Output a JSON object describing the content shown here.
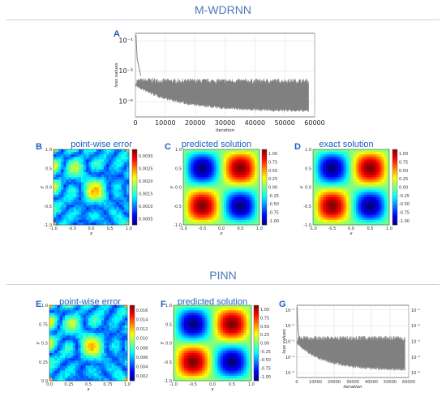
{
  "sections": {
    "top_title": "M-WDRNN",
    "bottom_title": "PINN"
  },
  "panels": [
    {
      "letter": "A",
      "title": ""
    },
    {
      "letter": "B",
      "title": "point-wise error"
    },
    {
      "letter": "C",
      "title": "predicted solution"
    },
    {
      "letter": "D",
      "title": "exact solution"
    },
    {
      "letter": "E",
      "title": "point-wise error"
    },
    {
      "letter": "F",
      "title": "predicted solution"
    },
    {
      "letter": "G",
      "title": ""
    }
  ],
  "colors": {
    "accent": "#1f5fbf",
    "section": "#4a7ab8",
    "loss": "#808080"
  },
  "chart_data": [
    {
      "id": "A",
      "type": "line",
      "title": "",
      "xlabel": "iteration",
      "ylabel": "loss values",
      "xlim": [
        0,
        60000
      ],
      "ylim_log10": [
        -6,
        -0.5
      ],
      "yscale": "log",
      "xticks": [
        "0",
        "10000",
        "20000",
        "30000",
        "40000",
        "50000",
        "60000"
      ],
      "xtick_values": [
        0,
        10000,
        20000,
        30000,
        40000,
        50000,
        60000
      ],
      "yticks": [
        "10⁻⁵",
        "10⁻³",
        "10⁻¹"
      ],
      "ytick_values": [
        -5,
        -3,
        -1
      ],
      "grid": true,
      "series": [
        {
          "values_desc": "",
          "start": 0.1,
          "mid": 0.00015,
          "end_low": 3e-06,
          "end_high": 0.0002,
          "x_end": 58000
        }
      ]
    },
    {
      "id": "B",
      "type": "heatmap",
      "field": "error",
      "xlabel": "x",
      "ylabel": "y",
      "xlim": [
        -1,
        1
      ],
      "ylim": [
        -1,
        1
      ],
      "xticks": [
        "-1.0",
        "-0.5",
        "0.0",
        "0.5",
        "1.0"
      ],
      "yticks": [
        "-1.0",
        "-0.5",
        "0.0",
        "0.5",
        "1.0"
      ],
      "cbar_ticks": [
        "0.0030",
        "0.0025",
        "0.0020",
        "0.0015",
        "0.0010",
        "0.0005"
      ]
    },
    {
      "id": "C",
      "type": "heatmap",
      "field": "solution",
      "xlabel": "x",
      "ylabel": "y",
      "xlim": [
        -1,
        1
      ],
      "ylim": [
        -1,
        1
      ],
      "xticks": [
        "-1.0",
        "-0.5",
        "0.0",
        "0.5",
        "1.0"
      ],
      "yticks": [
        "-1.0",
        "-0.5",
        "0.0",
        "0.5",
        "1.0"
      ],
      "cbar_ticks": [
        "1.00",
        "0.75",
        "0.50",
        "0.25",
        "0.00",
        "-0.25",
        "-0.50",
        "-0.75",
        "-1.00"
      ]
    },
    {
      "id": "D",
      "type": "heatmap",
      "field": "solution",
      "xlabel": "x",
      "ylabel": "y",
      "xlim": [
        -1,
        1
      ],
      "ylim": [
        -1,
        1
      ],
      "xticks": [
        "-1.0",
        "-0.5",
        "0.0",
        "0.5",
        "1.0"
      ],
      "yticks": [
        "-1.0",
        "-0.5",
        "0.0",
        "0.5",
        "1.0"
      ],
      "cbar_ticks": [
        "1.00",
        "0.75",
        "0.50",
        "0.25",
        "0.00",
        "-0.25",
        "-0.50",
        "-0.75",
        "-1.00"
      ]
    },
    {
      "id": "E",
      "type": "heatmap",
      "field": "error",
      "xlabel": "x",
      "ylabel": "y",
      "xlim": [
        0,
        1
      ],
      "ylim": [
        0,
        1
      ],
      "xticks": [
        "0.0",
        "0.25",
        "0.5",
        "0.75",
        "1.0"
      ],
      "yticks": [
        "0.0",
        "0.25",
        "0.5",
        "0.75",
        "1.0"
      ],
      "cbar_ticks": [
        "0.016",
        "0.014",
        "0.012",
        "0.010",
        "0.008",
        "0.006",
        "0.004",
        "0.002"
      ]
    },
    {
      "id": "F",
      "type": "heatmap",
      "field": "solution",
      "xlabel": "x",
      "ylabel": "y",
      "xlim": [
        -1,
        1
      ],
      "ylim": [
        -1,
        1
      ],
      "xticks": [
        "-1.0",
        "-0.5",
        "0.0",
        "0.5",
        "1.0"
      ],
      "yticks": [
        "-1.0",
        "-0.5",
        "0.0",
        "0.5",
        "1.0"
      ],
      "cbar_ticks": [
        "1.00",
        "0.75",
        "0.50",
        "0.25",
        "0.00",
        "-0.25",
        "-0.50",
        "-0.75",
        "-1.00"
      ]
    },
    {
      "id": "G",
      "type": "line",
      "title": "",
      "xlabel": "iteration",
      "ylabel": "loss values",
      "xlim": [
        0,
        60000
      ],
      "ylim_log10": [
        -5.3,
        -0.7
      ],
      "yscale": "log",
      "xticks": [
        "0",
        "10000",
        "20000",
        "30000",
        "40000",
        "50000",
        "60000"
      ],
      "xtick_values": [
        0,
        10000,
        20000,
        30000,
        40000,
        50000,
        60000
      ],
      "yticks": [
        "10⁻⁵",
        "10⁻⁴",
        "10⁻³",
        "10⁻²",
        "10⁻¹"
      ],
      "ytick_values": [
        -5,
        -4,
        -3,
        -2,
        -1
      ],
      "grid": true,
      "series": [
        {
          "values_desc": "",
          "start": 0.1,
          "mid": 0.001,
          "end_low": 2e-05,
          "end_high": 0.001,
          "x_end": 58000
        }
      ]
    }
  ]
}
